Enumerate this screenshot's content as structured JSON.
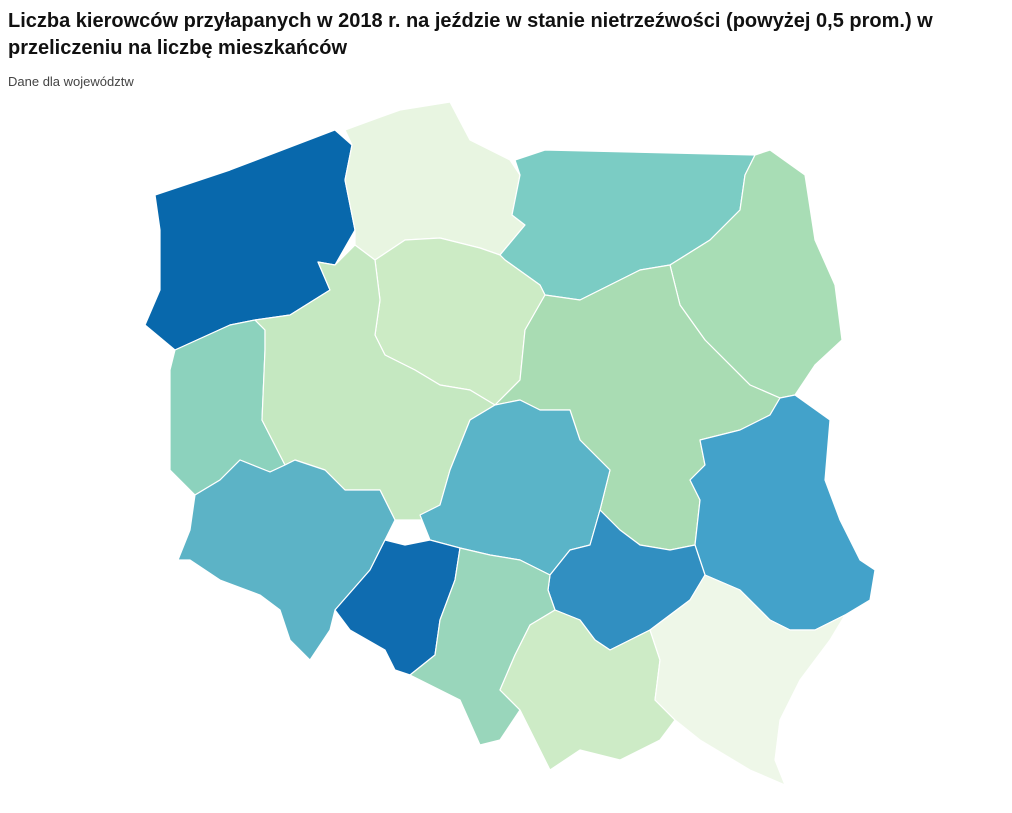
{
  "header": {
    "title": "Liczba kierowców przyłapanych w 2018 r. na jeździe w stanie nietrzeźwości (powyżej 0,5 prom.) w przeliczeniu na liczbę mieszkańców",
    "subtitle": "Dane dla województw"
  },
  "regions": [
    {
      "color": "#0868ac"
    },
    {
      "color": "#e8f5e1"
    },
    {
      "color": "#7bccc4"
    },
    {
      "color": "#a8ddb5"
    },
    {
      "color": "#ccebc5"
    },
    {
      "color": "#8cd2bd"
    },
    {
      "color": "#c5e8c1"
    },
    {
      "color": "#a9dcb3"
    },
    {
      "color": "#5ab4c8"
    },
    {
      "color": "#43a2ca"
    },
    {
      "color": "#5cb3c6"
    },
    {
      "color": "#0f6cb0"
    },
    {
      "color": "#318fc1"
    },
    {
      "color": "#99d6bb"
    },
    {
      "color": "#cdebc6"
    },
    {
      "color": "#eef7e8"
    }
  ]
}
